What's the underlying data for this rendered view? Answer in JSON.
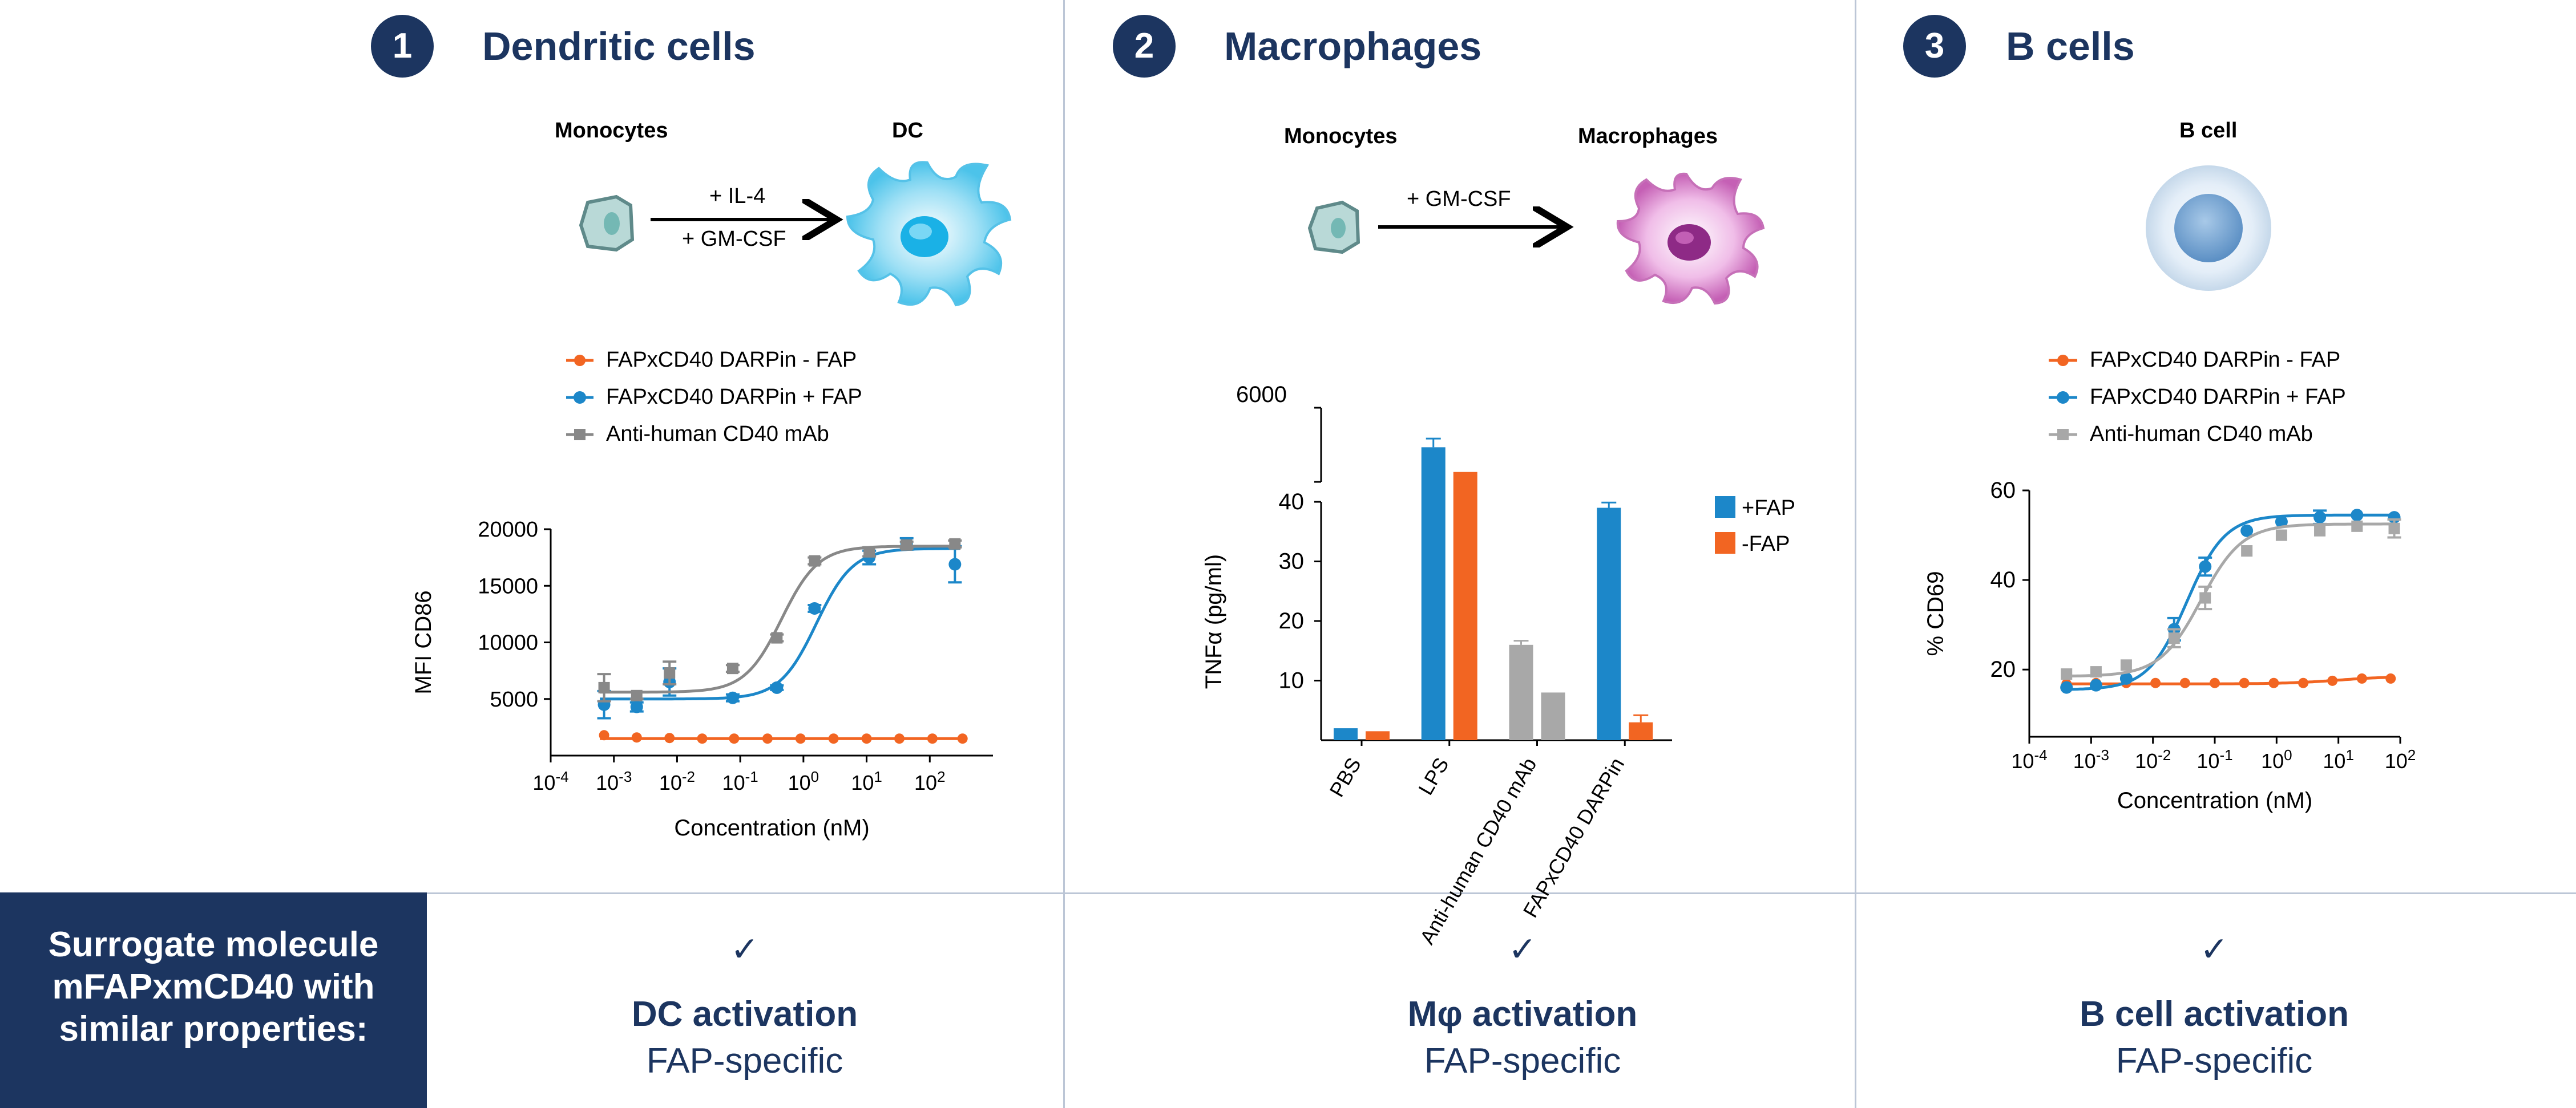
{
  "panels": [
    {
      "number": "1",
      "title": "Dendritic cells",
      "diagram": {
        "from": "Monocytes",
        "to": "DC",
        "arrow_labels": [
          "+ IL-4",
          "+ GM-CSF"
        ]
      },
      "legend": [
        "FAPxCD40 DARPin - FAP",
        "FAPxCD40 DARPin + FAP",
        "Anti-human CD40 mAb"
      ],
      "check": "✓",
      "activation": "DC activation",
      "specific": "FAP-specific"
    },
    {
      "number": "2",
      "title": "Macrophages",
      "diagram": {
        "from": "Monocytes",
        "to": "Macrophages",
        "arrow_labels": [
          "+ GM-CSF"
        ]
      },
      "legend": [
        "+FAP",
        "-FAP"
      ],
      "check": "✓",
      "activation": "Mφ activation",
      "specific": "FAP-specific"
    },
    {
      "number": "3",
      "title": "B cells",
      "diagram": {
        "cell": "B cell"
      },
      "legend": [
        "FAPxCD40 DARPin - FAP",
        "FAPxCD40 DARPin + FAP",
        "Anti-human CD40 mAb"
      ],
      "check": "✓",
      "activation": "B cell activation",
      "specific": "FAP-specific"
    }
  ],
  "sidebar": {
    "lines": [
      "Surrogate molecule",
      "mFAPxmCD40 with",
      "similar properties:"
    ]
  },
  "colors": {
    "navy": "#1c3560",
    "orange": "#f26522",
    "blue": "#1c87c9",
    "gray": "#888888",
    "lightgray": "#a8a8a8"
  },
  "chart_data": [
    {
      "type": "scatter",
      "xlabel": "Concentration (nM)",
      "ylabel": "MFI CD86",
      "xscale": "log",
      "xlim": [
        0.0001,
        1000
      ],
      "ylim": [
        0,
        20000
      ],
      "x_ticks": [
        "10-4",
        "10-3",
        "10-2",
        "10-1",
        "100",
        "101",
        "102"
      ],
      "y_ticks": [
        "5000",
        "10000",
        "15000",
        "20000"
      ],
      "series": [
        {
          "name": "FAPxCD40 DARPin - FAP",
          "color": "#f26522",
          "x": [
            0.0007,
            0.0023,
            0.0076,
            0.025,
            0.08,
            0.27,
            0.9,
            3,
            10,
            33,
            110,
            330
          ],
          "y": [
            1800,
            1600,
            1550,
            1500,
            1500,
            1500,
            1500,
            1500,
            1500,
            1500,
            1500,
            1500
          ],
          "fit": {
            "bottom": 1500,
            "top": 1500,
            "ec50": 1,
            "hill": 1
          }
        },
        {
          "name": "FAPxCD40 DARPin + FAP",
          "color": "#1c87c9",
          "x": [
            0.0007,
            0.0023,
            0.0076,
            0.076,
            0.38,
            1.5,
            11,
            43,
            250
          ],
          "y": [
            4500,
            4300,
            6500,
            5100,
            6000,
            13000,
            17500,
            18700,
            16900
          ],
          "err": [
            1200,
            400,
            1200,
            300,
            200,
            300,
            600,
            500,
            1600
          ],
          "fit": {
            "bottom": 5000,
            "top": 18300,
            "ec50": 1.6,
            "hill": 1.5
          }
        },
        {
          "name": "Anti-human CD40 mAb",
          "color": "#888888",
          "x": [
            0.0007,
            0.0023,
            0.0076,
            0.076,
            0.38,
            1.5,
            11,
            43,
            250
          ],
          "y": [
            6000,
            5300,
            7300,
            7700,
            10400,
            17200,
            18000,
            18600,
            18700
          ],
          "err": [
            1200,
            300,
            1000,
            300,
            300,
            300,
            400,
            300,
            300
          ],
          "fit": {
            "bottom": 5600,
            "top": 18500,
            "ec50": 0.45,
            "hill": 1.5
          }
        }
      ]
    },
    {
      "type": "bar",
      "ylabel": "TNFα (pg/ml)",
      "categories": [
        "PBS",
        "LPS",
        "Anti-human CD40 mAb",
        "FAPxCD40 DARPin"
      ],
      "y_ticks_lower": [
        "10",
        "20",
        "30",
        "40"
      ],
      "y_ticks_upper": [
        "6000"
      ],
      "axis_break": true,
      "series": [
        {
          "name": "+FAP",
          "color": "#1c87c9",
          "values": [
            2,
            5200,
            16,
            39
          ],
          "err": [
            0,
            130,
            0.3,
            0.5
          ]
        },
        {
          "name": "-FAP",
          "color": "#f26522",
          "values": [
            1.5,
            4700,
            8,
            3
          ],
          "err": [
            0,
            0,
            0,
            0.8
          ]
        }
      ]
    },
    {
      "type": "scatter",
      "xlabel": "Concentration (nM)",
      "ylabel": "% CD69",
      "xscale": "log",
      "xlim": [
        0.0001,
        100
      ],
      "ylim": [
        5,
        60
      ],
      "x_ticks": [
        "10-4",
        "10-3",
        "10-2",
        "10-1",
        "100",
        "101",
        "102"
      ],
      "y_ticks": [
        "20",
        "40",
        "60"
      ],
      "series": [
        {
          "name": "FAPxCD40 DARPin - FAP",
          "color": "#f26522",
          "x": [
            0.0004,
            0.0012,
            0.0037,
            0.011,
            0.033,
            0.1,
            0.3,
            0.9,
            2.7,
            8,
            24,
            70
          ],
          "y": [
            16.8,
            17,
            17,
            17,
            17,
            17,
            17,
            17,
            17,
            17.5,
            18,
            18
          ],
          "fit": {
            "bottom": 16.8,
            "top": 18.5,
            "ec50": 10,
            "hill": 1
          }
        },
        {
          "name": "FAPxCD40 DARPin + FAP",
          "color": "#1c87c9",
          "x": [
            0.0004,
            0.0012,
            0.0037,
            0.022,
            0.07,
            0.33,
            1.2,
            5,
            20,
            80
          ],
          "y": [
            16,
            16.5,
            18,
            29,
            43,
            51,
            53,
            54,
            54.5,
            54
          ],
          "err": [
            0,
            0,
            0,
            2.5,
            2,
            0,
            0,
            1.5,
            0,
            0
          ],
          "fit": {
            "bottom": 15.5,
            "top": 54.5,
            "ec50": 0.035,
            "hill": 1.4
          }
        },
        {
          "name": "Anti-human CD40 mAb",
          "color": "#a8a8a8",
          "x": [
            0.0004,
            0.0012,
            0.0037,
            0.022,
            0.07,
            0.33,
            1.2,
            5,
            20,
            80
          ],
          "y": [
            19,
            19.5,
            21,
            27,
            36,
            46.5,
            50,
            51,
            52,
            51.5
          ],
          "err": [
            0,
            0,
            0,
            2,
            2.5,
            0,
            0,
            0,
            0,
            2
          ],
          "fit": {
            "bottom": 18.5,
            "top": 52.5,
            "ec50": 0.06,
            "hill": 1.3
          }
        }
      ]
    }
  ]
}
